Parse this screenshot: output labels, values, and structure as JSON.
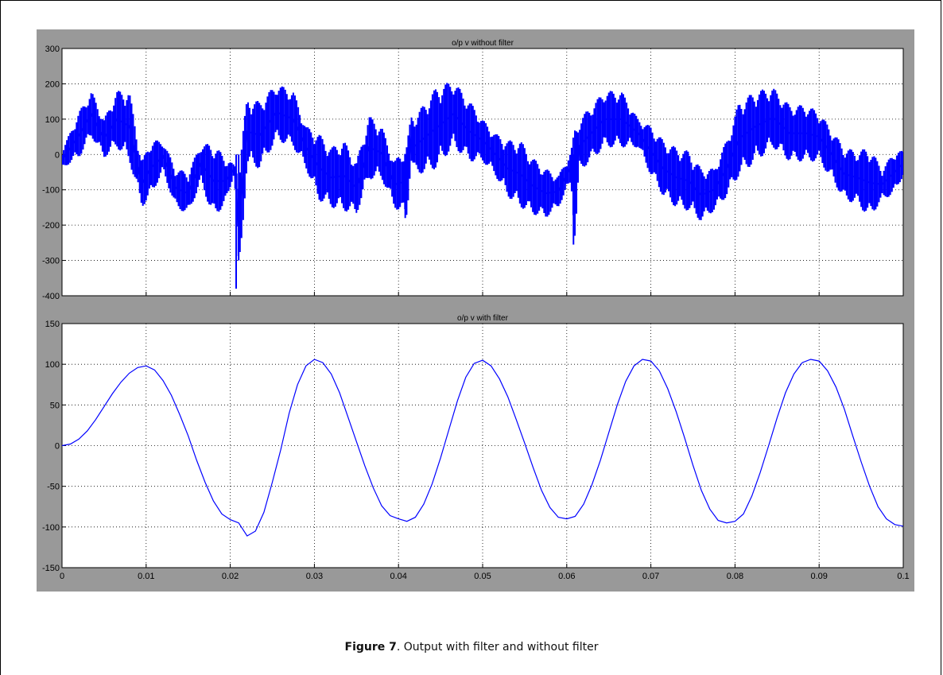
{
  "caption": {
    "label": "Figure 7",
    "text": ". Output with filter and without filter"
  },
  "colors": {
    "figure_bg": "#999999",
    "axes_bg": "#ffffff",
    "series": "#0000ff",
    "grid": "#000000"
  },
  "x_ticks": [
    "0",
    "0.01",
    "0.02",
    "0.03",
    "0.04",
    "0.05",
    "0.06",
    "0.07",
    "0.08",
    "0.09",
    "0.1"
  ],
  "chart_data": [
    {
      "type": "line",
      "title": "o/p v without filter",
      "xlim": [
        0,
        0.1
      ],
      "ylim": [
        -400,
        300
      ],
      "grid": true,
      "y_ticks": [
        "300",
        "200",
        "100",
        "0",
        "-100",
        "-200",
        "-300",
        "-400"
      ],
      "series": [
        {
          "color": "#0000ff",
          "style": "dense-switching-ripple",
          "envelope": {
            "x": [
              0,
              0.002,
              0.0035,
              0.005,
              0.0065,
              0.008,
              0.0095,
              0.0105,
              0.012,
              0.0135,
              0.015,
              0.0165,
              0.018,
              0.0195,
              0.0205,
              0.021,
              0.022,
              0.0235,
              0.0255,
              0.0275,
              0.029,
              0.0305,
              0.032,
              0.0335,
              0.035,
              0.0365,
              0.038,
              0.0395,
              0.041,
              0.0415,
              0.042,
              0.0445,
              0.0465,
              0.0485,
              0.05,
              0.0515,
              0.053,
              0.0545,
              0.056,
              0.0575,
              0.059,
              0.0605,
              0.061,
              0.0615,
              0.0645,
              0.0665,
              0.0685,
              0.07,
              0.0715,
              0.073,
              0.0745,
              0.076,
              0.0775,
              0.079,
              0.0805,
              0.0825,
              0.0845,
              0.0865,
              0.0885,
              0.09,
              0.0915,
              0.093,
              0.0945,
              0.096,
              0.0975,
              0.099,
              0.1
            ],
            "upper": [
              10,
              120,
              180,
              100,
              180,
              180,
              -20,
              40,
              40,
              -40,
              -50,
              30,
              30,
              -10,
              -30,
              -30,
              160,
              150,
              200,
              180,
              80,
              60,
              20,
              40,
              -20,
              110,
              80,
              -20,
              30,
              110,
              110,
              190,
              210,
              150,
              100,
              60,
              40,
              40,
              -10,
              -40,
              -60,
              10,
              80,
              100,
              180,
              180,
              100,
              80,
              40,
              20,
              10,
              -40,
              -40,
              40,
              150,
              180,
              190,
              140,
              140,
              120,
              70,
              20,
              10,
              20,
              -40,
              10,
              10
            ],
            "lower": [
              -40,
              -10,
              50,
              -10,
              20,
              -20,
              -150,
              -120,
              -50,
              -150,
              -170,
              -80,
              -180,
              -140,
              -50,
              -380,
              -30,
              -40,
              40,
              20,
              -40,
              -130,
              -150,
              -160,
              -170,
              -70,
              -70,
              -150,
              -180,
              -20,
              -60,
              -40,
              20,
              -20,
              -20,
              -60,
              -120,
              -150,
              -170,
              -180,
              -150,
              -80,
              -250,
              -50,
              20,
              20,
              20,
              -60,
              -120,
              -150,
              -160,
              -190,
              -160,
              -120,
              -60,
              -20,
              20,
              -20,
              -20,
              -20,
              -70,
              -130,
              -140,
              -180,
              -130,
              -110,
              -60
            ]
          },
          "spikes": [
            {
              "x": 0.0207,
              "y": -380
            },
            {
              "x": 0.021,
              "y": -300
            },
            {
              "x": 0.0408,
              "y": -180
            },
            {
              "x": 0.0608,
              "y": -255
            }
          ]
        }
      ]
    },
    {
      "type": "line",
      "title": "o/p v with filter",
      "xlim": [
        0,
        0.1
      ],
      "ylim": [
        -150,
        150
      ],
      "grid": true,
      "y_ticks": [
        "150",
        "100",
        "50",
        "0",
        "-50",
        "-100",
        "-150"
      ],
      "series": [
        {
          "color": "#0000ff",
          "x": [
            0,
            0.001,
            0.002,
            0.003,
            0.004,
            0.005,
            0.006,
            0.007,
            0.008,
            0.009,
            0.01,
            0.011,
            0.012,
            0.013,
            0.014,
            0.015,
            0.016,
            0.017,
            0.018,
            0.019,
            0.02,
            0.021,
            0.022,
            0.023,
            0.024,
            0.025,
            0.026,
            0.027,
            0.028,
            0.029,
            0.03,
            0.031,
            0.032,
            0.033,
            0.034,
            0.035,
            0.036,
            0.037,
            0.038,
            0.039,
            0.04,
            0.041,
            0.042,
            0.043,
            0.044,
            0.045,
            0.046,
            0.047,
            0.048,
            0.049,
            0.05,
            0.051,
            0.052,
            0.053,
            0.054,
            0.055,
            0.056,
            0.057,
            0.058,
            0.059,
            0.06,
            0.061,
            0.062,
            0.063,
            0.064,
            0.065,
            0.066,
            0.067,
            0.068,
            0.069,
            0.07,
            0.071,
            0.072,
            0.073,
            0.074,
            0.075,
            0.076,
            0.077,
            0.078,
            0.079,
            0.08,
            0.081,
            0.082,
            0.083,
            0.084,
            0.085,
            0.086,
            0.087,
            0.088,
            0.089,
            0.09,
            0.091,
            0.092,
            0.093,
            0.094,
            0.095,
            0.096,
            0.097,
            0.098,
            0.099,
            0.1
          ],
          "y": [
            0,
            2,
            8,
            18,
            32,
            48,
            64,
            78,
            89,
            96,
            98,
            93,
            80,
            62,
            38,
            12,
            -18,
            -45,
            -68,
            -84,
            -91,
            -95,
            -111,
            -105,
            -82,
            -45,
            -5,
            40,
            75,
            98,
            106,
            102,
            88,
            65,
            35,
            5,
            -25,
            -52,
            -74,
            -86,
            -90,
            -93,
            -88,
            -72,
            -47,
            -15,
            20,
            55,
            84,
            101,
            105,
            98,
            82,
            60,
            32,
            3,
            -27,
            -55,
            -76,
            -88,
            -90,
            -87,
            -72,
            -48,
            -18,
            16,
            50,
            79,
            98,
            106,
            104,
            92,
            70,
            42,
            10,
            -24,
            -55,
            -78,
            -92,
            -95,
            -93,
            -84,
            -62,
            -33,
            0,
            34,
            65,
            88,
            102,
            106,
            104,
            92,
            72,
            45,
            12,
            -20,
            -50,
            -75,
            -90,
            -97,
            -99
          ]
        }
      ]
    }
  ]
}
